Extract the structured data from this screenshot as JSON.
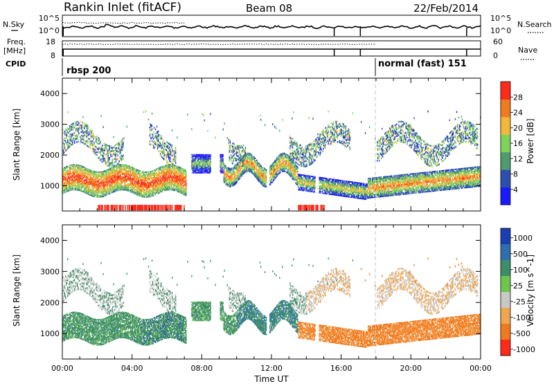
{
  "header": {
    "title": "Rankin Inlet (fitACF)",
    "beam": "Beam 08",
    "date": "22/Feb/2014"
  },
  "top_panels": {
    "noise": {
      "left_label": "N.Sky",
      "right_label": "N.Search",
      "left_ticks": [
        "10^5",
        "10^0"
      ],
      "right_ticks": [
        "10^5",
        "10^0"
      ]
    },
    "freq": {
      "left_label_line1": "Freq.",
      "left_label_line2": "[MHz]",
      "right_label": "Nave",
      "left_ticks": [
        "18",
        "8"
      ],
      "right_ticks": [
        "60",
        "0"
      ]
    },
    "cpid": {
      "label": "CPID",
      "modes": [
        "rbsp 200",
        "normal (fast) 151"
      ]
    }
  },
  "chart_data": [
    {
      "type": "heatmap",
      "name": "power-panel",
      "ylabel": "Slant Range [km]",
      "ylim": [
        180,
        4500
      ],
      "yticks": [
        1000,
        2000,
        3000,
        4000
      ],
      "xlim_hours": [
        0,
        24
      ],
      "colorbar": {
        "label": "Power [dB]",
        "ticks": [
          "4",
          "8",
          "12",
          "16",
          "20",
          "24",
          "28"
        ],
        "colors": [
          "#1a1aff",
          "#2f4fb0",
          "#4f9a6e",
          "#7fd35a",
          "#f2b83a",
          "#f07a1f",
          "#ff2a1a"
        ]
      }
    },
    {
      "type": "heatmap",
      "name": "velocity-panel",
      "ylabel": "Slant Range [km]",
      "ylim": [
        180,
        4500
      ],
      "yticks": [
        1000,
        2000,
        3000,
        4000
      ],
      "xlim_hours": [
        0,
        24
      ],
      "xlabel": "Time UT",
      "xticks": [
        "00:00",
        "04:00",
        "08:00",
        "12:00",
        "16:00",
        "20:00",
        "00:00"
      ],
      "colorbar": {
        "label": "Velocity [m s^-1]",
        "ticks": [
          "1000",
          "500",
          "100",
          "25",
          "-25",
          "-100",
          "-500",
          "-1000"
        ],
        "colors": [
          "#1a3fb0",
          "#2f6fae",
          "#3d8c6a",
          "#6fc64f",
          "#c8c8c4",
          "#f0a550",
          "#f07a1f",
          "#ff2a1a"
        ]
      }
    }
  ]
}
